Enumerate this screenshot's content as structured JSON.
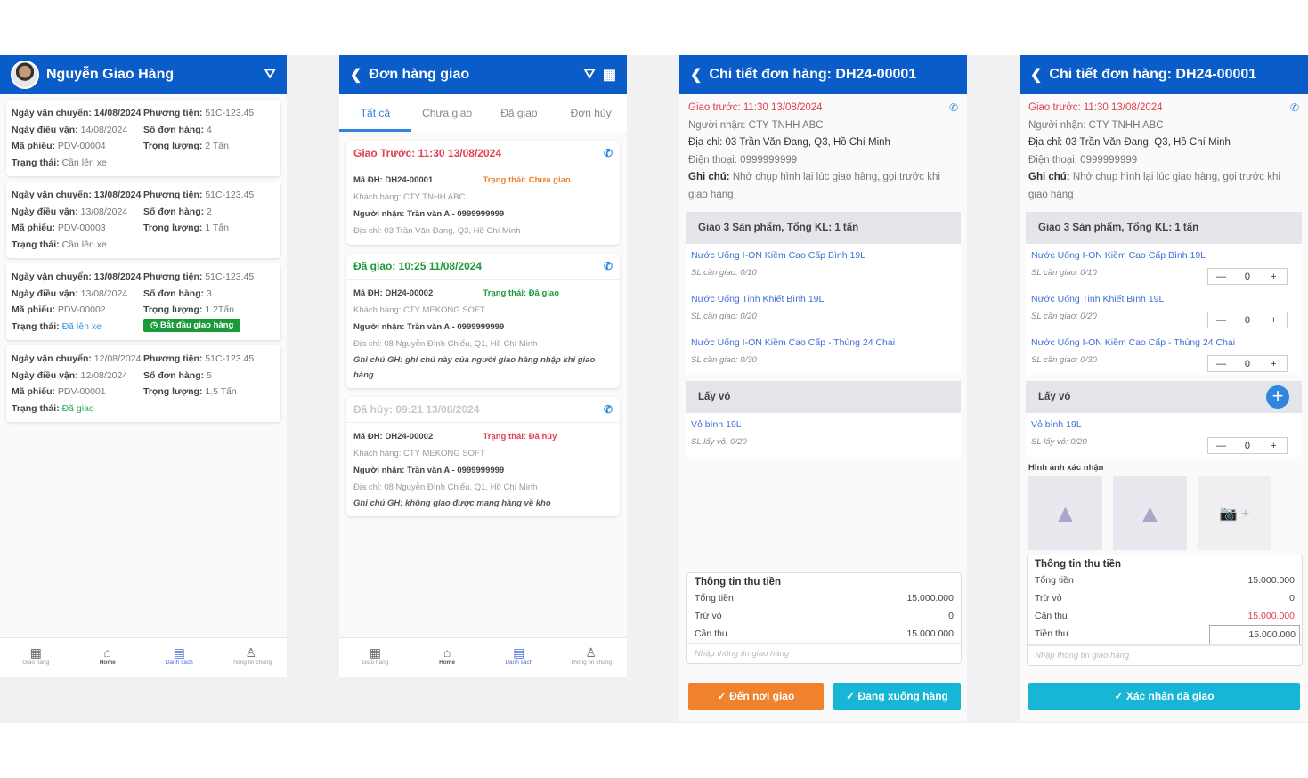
{
  "colors": {
    "header": "#0a5cc8",
    "accent": "#2f86dd",
    "red": "#e04050",
    "green": "#1a9a3a",
    "orange": "#f0822e",
    "cyan": "#18b6d6"
  },
  "list": {
    "title": "Nguyễn Giao Hàng",
    "icon": "filter-icon",
    "cards": [
      {
        "left": [
          [
            "Ngày vận chuyển:",
            "14/08/2024"
          ],
          [
            "Ngày điều vận:",
            "14/08/2024"
          ],
          [
            "Mã phiếu:",
            "PDV-00004"
          ],
          [
            "Trạng thái:",
            "Cần lên xe"
          ]
        ],
        "right": [
          [
            "Phương tiện:",
            "51C-123.45"
          ],
          [
            "Số đơn hàng:",
            "4"
          ],
          [
            "Trọng lượng:",
            "2 Tấn"
          ]
        ],
        "status_color": "#777"
      },
      {
        "left": [
          [
            "Ngày vận chuyển:",
            "13/08/2024"
          ],
          [
            "Ngày điều vận:",
            "13/08/2024"
          ],
          [
            "Mã phiếu:",
            "PDV-00003"
          ],
          [
            "Trạng thái:",
            "Cần lên xe"
          ]
        ],
        "right": [
          [
            "Phương tiện:",
            "51C-123.45"
          ],
          [
            "Số đơn hàng:",
            "2"
          ],
          [
            "Trọng lượng:",
            "1 Tấn"
          ]
        ],
        "status_color": "#777"
      },
      {
        "left": [
          [
            "Ngày vận chuyển:",
            "13/08/2024"
          ],
          [
            "Ngày điều vận:",
            "13/08/2024"
          ],
          [
            "Mã phiếu:",
            "PDV-00002"
          ],
          [
            "Trạng thái:",
            "Đã lên xe"
          ]
        ],
        "right": [
          [
            "Phương tiện:",
            "51C-123.45"
          ],
          [
            "Số đơn hàng:",
            "3"
          ],
          [
            "Trọng lượng:",
            "1.2Tấn"
          ]
        ],
        "status_color": "#2f96e0",
        "button": "Bắt đầu giao hàng"
      },
      {
        "left": [
          [
            "Ngày vận chuyển:",
            "12/08/2024"
          ],
          [
            "Ngày điều vận:",
            "12/08/2024"
          ],
          [
            "Mã phiếu:",
            "PDV-00001"
          ],
          [
            "Trạng thái:",
            "Đã giao"
          ]
        ],
        "right": [
          [
            "Phương tiện:",
            "51C-123.45"
          ],
          [
            "Số đơn hàng:",
            "5"
          ],
          [
            "Trọng lượng:",
            "1.5 Tấn"
          ]
        ],
        "status_color": "#2aa84a"
      }
    ]
  },
  "nav": [
    {
      "label": "Giao hàng",
      "icon": "grid-icon"
    },
    {
      "label": "Home",
      "icon": "home-icon"
    },
    {
      "label": "Danh sách",
      "icon": "list-icon"
    },
    {
      "label": "Thông tin chung",
      "icon": "user-icon"
    }
  ],
  "orders": {
    "title": "Đơn hàng giao",
    "tabs": [
      "Tất cả",
      "Chưa giao",
      "Đã giao",
      "Đơn hủy"
    ],
    "cards": [
      {
        "head": "Giao Trước: 11:30 13/08/2024",
        "head_color": "#e04050",
        "code": "Mã ĐH: DH24-00001",
        "status": "Trạng thái: Chưa giao",
        "status_color": "#f0822e",
        "customer": "Khách hàng: CTY TNHH ABC",
        "receiver": "Người nhận: Trần văn A - 0999999999",
        "address": "Địa chỉ: 03 Trần Văn Đang, Q3, Hồ Chí Minh"
      },
      {
        "head": "Đã giao: 10:25 11/08/2024",
        "head_color": "#1a9a3a",
        "code": "Mã ĐH: DH24-00002",
        "status": "Trạng thái: Đã giao",
        "status_color": "#1a9a3a",
        "customer": "Khách hàng: CTY MEKONG SOFT",
        "receiver": "Người nhận: Trần văn A - 0999999999",
        "address": "Địa chỉ: 08 Nguyễn Đình Chiểu, Q1, Hồ Chí Minh",
        "note": "Ghi chú GH: ghi chú này của người giao hàng nhập khi giao hàng"
      },
      {
        "head": "Đã hủy: 09:21 13/08/2024",
        "head_color": "#c8c8cc",
        "code": "Mã ĐH: DH24-00002",
        "status": "Trạng thái: Đã hủy",
        "status_color": "#e04050",
        "customer": "Khách hàng: CTY MEKONG SOFT",
        "receiver": "Người nhận: Trần văn A - 0999999999",
        "address": "Địa chỉ: 08 Nguyễn Đình Chiểu, Q1, Hồ Chí Minh",
        "note": "Ghi chú GH: không giao được mang hàng về kho"
      }
    ]
  },
  "detail": {
    "title": "Chi tiết đơn hàng: DH24-00001",
    "deliver_before": "Giao trước: 11:30 13/08/2024",
    "receiver": "Người nhận: CTY TNHH ABC",
    "address": "Địa chỉ: 03 Trần Văn Đang, Q3, Hồ Chí Minh",
    "phone": "Điện thoại: 0999999999",
    "note_label": "Ghi chú:",
    "note": " Nhớ chụp hình lại lúc giao hàng, gọi trước khi giao hàng",
    "products_title": "Giao 3 Sản phẩm, Tổng KL: 1 tấn",
    "products": [
      {
        "name": "Nước Uống I-ON Kiềm Cao Cấp Bình 19L",
        "qty": "SL cần giao: 0/10",
        "value": "0"
      },
      {
        "name": "Nước Uống Tinh Khiết Bình 19L",
        "qty": "SL cần giao: 0/20",
        "value": "0"
      },
      {
        "name": "Nước Uống I-ON Kiềm Cao Cấp - Thùng 24 Chai",
        "qty": "SL cần giao: 0/30",
        "value": "0"
      }
    ],
    "shells_title": "Lấy vỏ",
    "shells": [
      {
        "name": "Vỏ bình 19L",
        "qty": "SL lấy vỏ: 0/20",
        "value": "0"
      }
    ],
    "images_label": "Hình ảnh xác nhận",
    "payment": {
      "title": "Thông tin thu tiền",
      "total_label": "Tổng tiền",
      "total": "15.000.000",
      "deduct_label": "Trừ vỏ",
      "deduct": "0",
      "due_label": "Cần thu",
      "due": "15.000.000",
      "collected_label": "Tiền thu",
      "collected": "15.000.000",
      "placeholder": "Nhập thông tin giao hàng"
    },
    "btn_arrive": "Đến nơi giao",
    "btn_unload": "Đang xuống hàng",
    "btn_confirm": "Xác nhận đã giao"
  }
}
